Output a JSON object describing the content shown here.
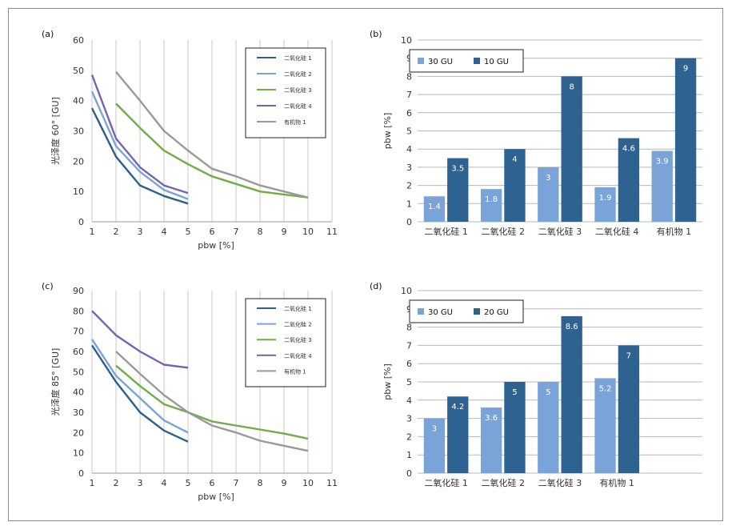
{
  "chart_data": [
    {
      "panel": "(a)",
      "type": "line",
      "xlabel": "pbw [%]",
      "ylabel": "光泽度 60° [GU]",
      "xlim": [
        1,
        11
      ],
      "ylim": [
        0,
        60
      ],
      "xticks": [
        1,
        2,
        3,
        4,
        5,
        6,
        7,
        8,
        9,
        10,
        11
      ],
      "yticks": [
        0,
        10,
        20,
        30,
        40,
        50,
        60
      ],
      "grid": "vertical",
      "legend": "top-right",
      "series": [
        {
          "name": "二氧化硅 1",
          "color": "#2e5f8a",
          "x": [
            1,
            2,
            3,
            4,
            5
          ],
          "y": [
            37.5,
            21.5,
            12,
            8.5,
            6
          ]
        },
        {
          "name": "二氧化硅 2",
          "color": "#7aa3d8",
          "x": [
            1,
            2,
            3,
            4,
            5
          ],
          "y": [
            43,
            25,
            16.5,
            10.5,
            7.5
          ]
        },
        {
          "name": "二氧化硅 3",
          "color": "#70ad47",
          "x": [
            2,
            3,
            4,
            5,
            6,
            7,
            8,
            9,
            10
          ],
          "y": [
            39,
            31,
            23.5,
            19,
            15,
            12.5,
            10,
            9,
            8
          ]
        },
        {
          "name": "二氧化硅 4",
          "color": "#7563b1",
          "x": [
            1,
            2,
            3,
            4,
            5
          ],
          "y": [
            48.5,
            27.5,
            18,
            12,
            9.5
          ]
        },
        {
          "name": "有机物 1",
          "color": "#999999",
          "x": [
            2,
            3,
            4,
            5,
            6,
            7,
            8,
            9,
            10
          ],
          "y": [
            49.5,
            40,
            30,
            23.5,
            17.5,
            15,
            12,
            10,
            8
          ]
        }
      ]
    },
    {
      "panel": "(b)",
      "type": "bar",
      "ylabel": "pbw [%]",
      "ylim": [
        0,
        10
      ],
      "yticks": [
        0,
        1,
        2,
        3,
        4,
        5,
        6,
        7,
        8,
        9,
        10
      ],
      "grid": "horizontal",
      "legend": "top-left",
      "categories": [
        "二氧化硅 1",
        "二氧化硅 2",
        "二氧化硅 3",
        "二氧化硅 4",
        "有机物 1"
      ],
      "series": [
        {
          "name": "30 GU",
          "color": "#7aa3d8",
          "values": [
            1.4,
            1.8,
            3,
            1.9,
            3.9
          ]
        },
        {
          "name": "10 GU",
          "color": "#2e6391",
          "values": [
            3.5,
            4,
            8,
            4.6,
            9
          ]
        }
      ]
    },
    {
      "panel": "(c)",
      "type": "line",
      "xlabel": "pbw [%]",
      "ylabel": "光泽度 85° [GU]",
      "xlim": [
        1,
        11
      ],
      "ylim": [
        0,
        90
      ],
      "xticks": [
        1,
        2,
        3,
        4,
        5,
        6,
        7,
        8,
        9,
        10,
        11
      ],
      "yticks": [
        0,
        10,
        20,
        30,
        40,
        50,
        60,
        70,
        80,
        90
      ],
      "grid": "vertical",
      "legend": "top-right",
      "series": [
        {
          "name": "二氧化硅 1",
          "color": "#2e5f8a",
          "x": [
            1,
            2,
            3,
            4,
            5
          ],
          "y": [
            63,
            45,
            30,
            21,
            15.5
          ]
        },
        {
          "name": "二氧化硅 2",
          "color": "#7aa3d8",
          "x": [
            1,
            2,
            3,
            4,
            5
          ],
          "y": [
            66,
            48,
            37,
            26,
            20
          ]
        },
        {
          "name": "二氧化硅 3",
          "color": "#70ad47",
          "x": [
            2,
            3,
            4,
            5,
            6,
            7,
            8,
            9,
            10
          ],
          "y": [
            53,
            43,
            34,
            30,
            25.5,
            23.5,
            21.5,
            19.5,
            17
          ]
        },
        {
          "name": "二氧化硅 4",
          "color": "#7563b1",
          "x": [
            1,
            2,
            3,
            4,
            5
          ],
          "y": [
            80,
            68,
            60,
            53.5,
            52
          ]
        },
        {
          "name": "有机物 1",
          "color": "#999999",
          "x": [
            2,
            3,
            4,
            5,
            6,
            7,
            8,
            9,
            10
          ],
          "y": [
            60,
            49,
            38.5,
            30,
            23.5,
            20,
            16,
            13.5,
            11
          ]
        }
      ]
    },
    {
      "panel": "(d)",
      "type": "bar",
      "ylabel": "pbw [%]",
      "ylim": [
        0,
        10
      ],
      "yticks": [
        0,
        1,
        2,
        3,
        4,
        5,
        6,
        7,
        8,
        9,
        10
      ],
      "grid": "horizontal",
      "legend": "top-left",
      "categories": [
        "二氧化硅 1",
        "二氧化硅 2",
        "二氧化硅 3",
        "有机物 1"
      ],
      "series": [
        {
          "name": "30 GU",
          "color": "#7aa3d8",
          "values": [
            3,
            3.6,
            5,
            5.2
          ]
        },
        {
          "name": "20 GU",
          "color": "#2e6391",
          "values": [
            4.2,
            5,
            8.6,
            7
          ]
        }
      ]
    }
  ]
}
